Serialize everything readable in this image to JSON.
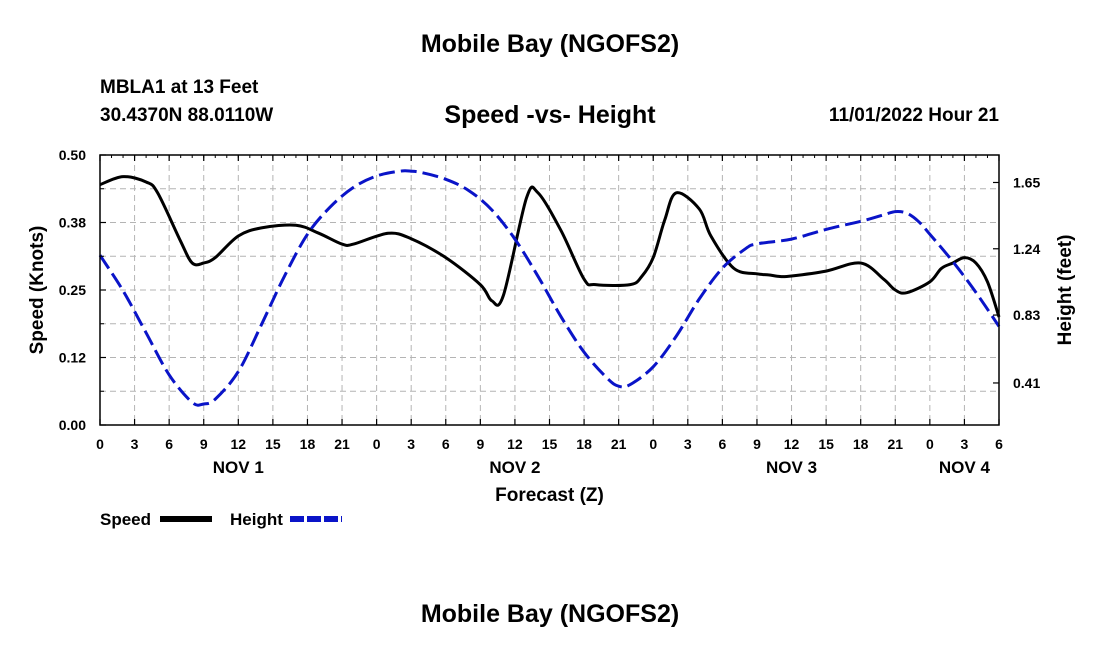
{
  "header": {
    "title": "Mobile Bay (NGOFS2)",
    "station": "MBLA1 at 13 Feet",
    "coords": "30.4370N  88.0110W",
    "datetime": "11/01/2022 Hour 21"
  },
  "footer": {
    "title": "Mobile Bay (NGOFS2)"
  },
  "chart_data": {
    "type": "line",
    "title": "Speed -vs- Height",
    "xlabel": "Forecast (Z)",
    "ylabel": "Speed (Knots)",
    "y2label": "Height (feet)",
    "xlim": [
      0,
      78
    ],
    "ylim": [
      0,
      0.5
    ],
    "y2lim": [
      0.15,
      1.82
    ],
    "grid": true,
    "legend_position": "bottom-left",
    "x_tick_labels": [
      "0",
      "3",
      "6",
      "9",
      "12",
      "15",
      "18",
      "21",
      "0",
      "3",
      "6",
      "9",
      "12",
      "15",
      "18",
      "21",
      "0",
      "3",
      "6",
      "9",
      "12",
      "15",
      "18",
      "21",
      "0",
      "3",
      "6"
    ],
    "y_tick_labels": [
      "0.00",
      "0.12",
      "0.25",
      "0.38",
      "0.50"
    ],
    "y2_ticks": [
      0.41,
      0.83,
      1.24,
      1.65
    ],
    "y2_tick_labels": [
      "0.41",
      "0.83",
      "1.24",
      "1.65"
    ],
    "day_labels": [
      {
        "label": "NOV 1",
        "x": 12
      },
      {
        "label": "NOV 2",
        "x": 36
      },
      {
        "label": "NOV 3",
        "x": 60
      },
      {
        "label": "NOV 4",
        "x": 75
      }
    ],
    "series": [
      {
        "name": "Speed",
        "axis": "left",
        "color": "#000000",
        "dash": "solid",
        "x": [
          0,
          2,
          4,
          5,
          7,
          8,
          9,
          10,
          12,
          14,
          17,
          19,
          21,
          22,
          25,
          27,
          30,
          33,
          34,
          35,
          37,
          38,
          40,
          42,
          43,
          46,
          47,
          48,
          49,
          50,
          52,
          53,
          55,
          57,
          58,
          59,
          60,
          63,
          66,
          68,
          69,
          70,
          72,
          73,
          74,
          75,
          76,
          77,
          78
        ],
        "y": [
          0.445,
          0.46,
          0.45,
          0.43,
          0.34,
          0.3,
          0.3,
          0.31,
          0.35,
          0.365,
          0.37,
          0.355,
          0.335,
          0.335,
          0.355,
          0.345,
          0.31,
          0.26,
          0.23,
          0.24,
          0.42,
          0.43,
          0.36,
          0.27,
          0.26,
          0.26,
          0.275,
          0.31,
          0.38,
          0.43,
          0.4,
          0.35,
          0.29,
          0.28,
          0.278,
          0.275,
          0.276,
          0.285,
          0.3,
          0.27,
          0.25,
          0.245,
          0.265,
          0.29,
          0.3,
          0.31,
          0.3,
          0.265,
          0.2
        ]
      },
      {
        "name": "Height",
        "axis": "right",
        "color": "#0a14c8",
        "dash": "dashed",
        "x": [
          0,
          2,
          4,
          6,
          8,
          9,
          10,
          12,
          14,
          16,
          18,
          20,
          22,
          24,
          26,
          27,
          28,
          30,
          32,
          34,
          36,
          38,
          40,
          42,
          44,
          45,
          46,
          48,
          50,
          52,
          54,
          56,
          57,
          60,
          63,
          66,
          68,
          69,
          70,
          71,
          72,
          74,
          76,
          78
        ],
        "y": [
          1.2,
          0.98,
          0.72,
          0.46,
          0.29,
          0.28,
          0.31,
          0.48,
          0.77,
          1.07,
          1.33,
          1.5,
          1.62,
          1.69,
          1.72,
          1.72,
          1.71,
          1.67,
          1.6,
          1.48,
          1.3,
          1.07,
          0.82,
          0.6,
          0.44,
          0.39,
          0.4,
          0.51,
          0.7,
          0.93,
          1.12,
          1.24,
          1.27,
          1.3,
          1.36,
          1.41,
          1.45,
          1.47,
          1.46,
          1.41,
          1.33,
          1.16,
          0.97,
          0.76
        ]
      }
    ]
  }
}
